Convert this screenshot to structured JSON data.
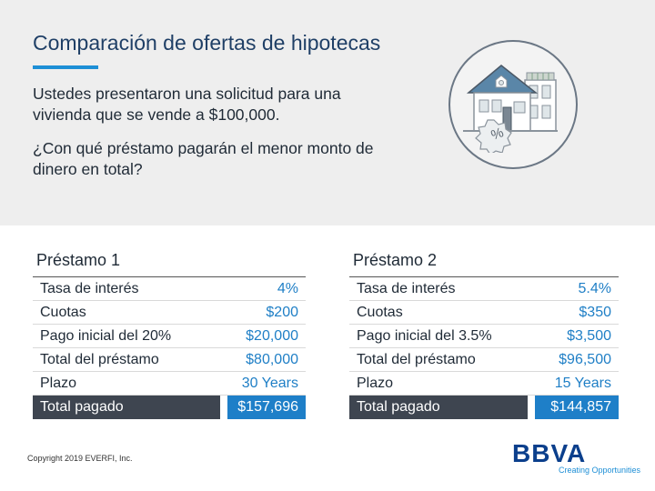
{
  "title": "Comparación de ofertas de hipotecas",
  "intro_1": "Ustedes presentaron una solicitud para una vivienda que se vende a $100,000.",
  "intro_2": "¿Con qué préstamo pagarán el menor monto de dinero en total?",
  "badge_symbol": "%",
  "loans": [
    {
      "title": "Préstamo 1",
      "rows": [
        {
          "label": "Tasa de interés",
          "value": "4%"
        },
        {
          "label": "Cuotas",
          "value": "$200"
        },
        {
          "label": "Pago inicial del 20%",
          "value": "$20,000"
        },
        {
          "label": "Total del préstamo",
          "value": "$80,000"
        },
        {
          "label": "Plazo",
          "value": "30 Years"
        },
        {
          "label": "Total pagado",
          "value": "$157,696"
        }
      ]
    },
    {
      "title": "Préstamo 2",
      "rows": [
        {
          "label": "Tasa de interés",
          "value": "5.4%"
        },
        {
          "label": "Cuotas",
          "value": "$350"
        },
        {
          "label": "Pago inicial del 3.5%",
          "value": "$3,500"
        },
        {
          "label": "Total del préstamo",
          "value": "$96,500"
        },
        {
          "label": "Plazo",
          "value": "15 Years"
        },
        {
          "label": "Total pagado",
          "value": "$144,857"
        }
      ]
    }
  ],
  "copyright": "Copyright 2019 EVERFI, Inc.",
  "logo_text": "BBVA",
  "slogan": "Creating Opportunities",
  "colors": {
    "accent": "#1e7fc8",
    "dark": "#3e4550",
    "heading": "#1f3f66"
  }
}
